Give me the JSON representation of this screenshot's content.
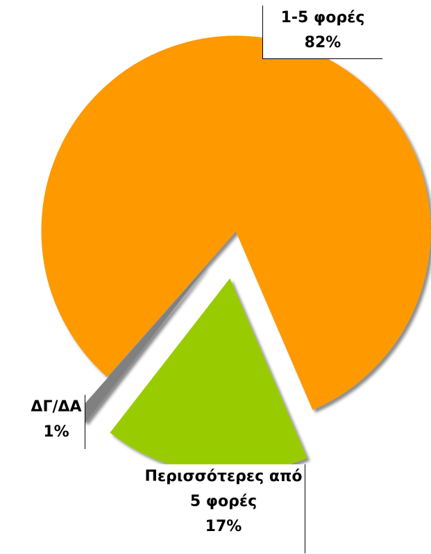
{
  "chart_data": {
    "type": "pie",
    "categories": [
      "1-5 φορές",
      "Περισσότερες από 5 φορές",
      "ΔΓ/ΔΑ"
    ],
    "values": [
      82,
      17,
      1
    ],
    "value_labels": [
      "82%",
      "17%",
      "1%"
    ],
    "colors": [
      "#ff9900",
      "#99cc00",
      "#808080"
    ]
  }
}
